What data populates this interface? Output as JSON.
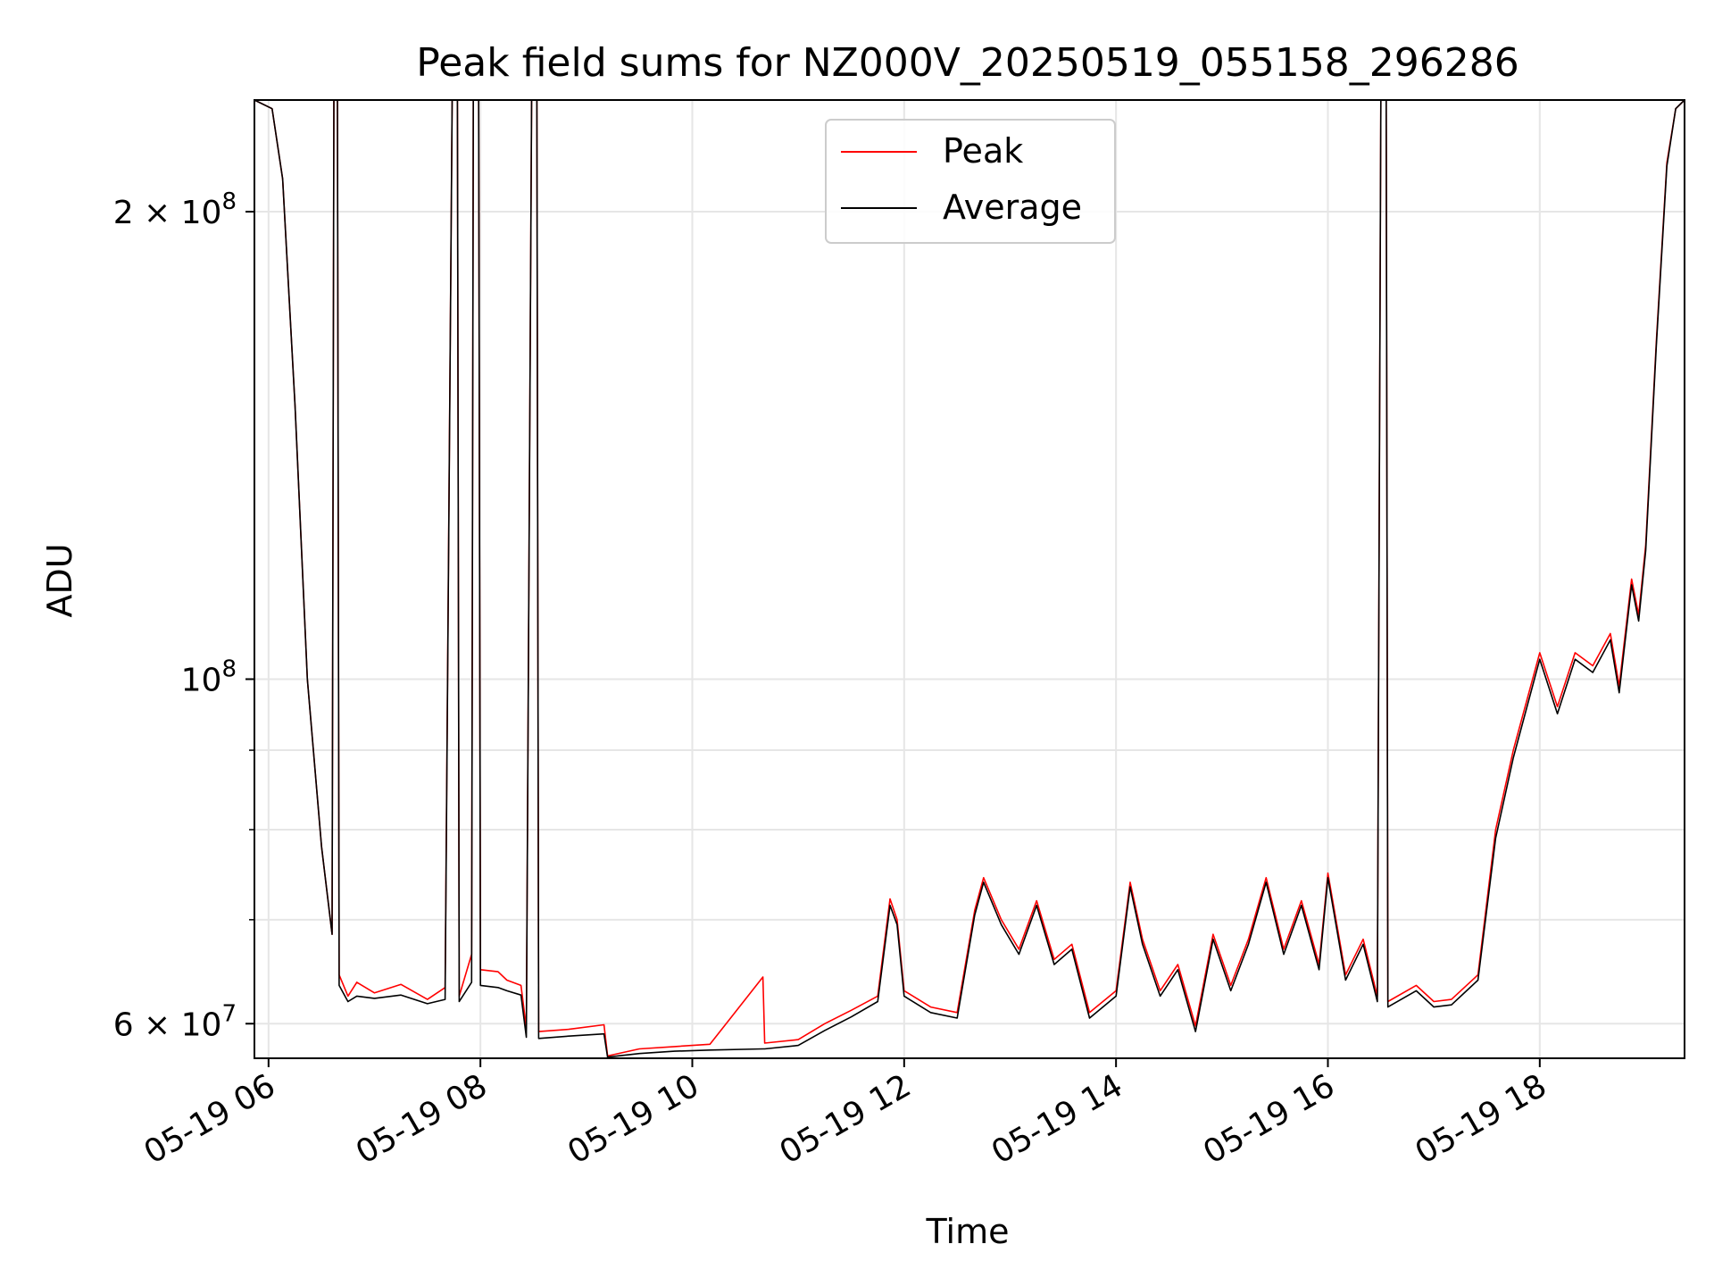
{
  "chart_data": {
    "type": "line",
    "title": "Peak field sums for NZ000V_20250519_055158_296286",
    "xlabel": "Time",
    "ylabel": "ADU",
    "yscale": "log",
    "grid": true,
    "legend_position": "top-center",
    "xlim": [
      "2025-05-19 05:52",
      "2025-05-19 19:22"
    ],
    "ylim": [
      57000000,
      236000000
    ],
    "x_ticks": [
      {
        "value": "2025-05-19 06:00",
        "label": "05-19 06"
      },
      {
        "value": "2025-05-19 08:00",
        "label": "05-19 08"
      },
      {
        "value": "2025-05-19 10:00",
        "label": "05-19 10"
      },
      {
        "value": "2025-05-19 12:00",
        "label": "05-19 12"
      },
      {
        "value": "2025-05-19 14:00",
        "label": "05-19 14"
      },
      {
        "value": "2025-05-19 16:00",
        "label": "05-19 16"
      },
      {
        "value": "2025-05-19 18:00",
        "label": "05-19 18"
      }
    ],
    "y_major_ticks": [
      {
        "value": 60000000,
        "label": "6 × 10",
        "exponent": "7"
      },
      {
        "value": 100000000,
        "label": "10",
        "exponent": "8"
      },
      {
        "value": 200000000,
        "label": "2 × 10",
        "exponent": "8"
      }
    ],
    "y_minor_ticks": [
      70000000,
      80000000,
      90000000
    ],
    "series": [
      {
        "name": "Peak",
        "color": "#ff0000",
        "points": [
          [
            "2025-05-19 05:52",
            236000000
          ],
          [
            "2025-05-19 06:02",
            233000000
          ],
          [
            "2025-05-19 06:08",
            210000000
          ],
          [
            "2025-05-19 06:15",
            150000000
          ],
          [
            "2025-05-19 06:22",
            100000000
          ],
          [
            "2025-05-19 06:30",
            78000000
          ],
          [
            "2025-05-19 06:36",
            68500000
          ],
          [
            "2025-05-19 06:37",
            236000000
          ],
          [
            "2025-05-19 06:39",
            236000000
          ],
          [
            "2025-05-19 06:40",
            64500000
          ],
          [
            "2025-05-19 06:45",
            62500000
          ],
          [
            "2025-05-19 06:50",
            63800000
          ],
          [
            "2025-05-19 07:00",
            62800000
          ],
          [
            "2025-05-19 07:15",
            63600000
          ],
          [
            "2025-05-19 07:30",
            62200000
          ],
          [
            "2025-05-19 07:40",
            63300000
          ],
          [
            "2025-05-19 07:44",
            236000000
          ],
          [
            "2025-05-19 07:47",
            236000000
          ],
          [
            "2025-05-19 07:48",
            62500000
          ],
          [
            "2025-05-19 07:55",
            66500000
          ],
          [
            "2025-05-19 07:56",
            236000000
          ],
          [
            "2025-05-19 07:59",
            236000000
          ],
          [
            "2025-05-19 08:00",
            65000000
          ],
          [
            "2025-05-19 08:10",
            64800000
          ],
          [
            "2025-05-19 08:15",
            64000000
          ],
          [
            "2025-05-19 08:23",
            63500000
          ],
          [
            "2025-05-19 08:26",
            59600000
          ],
          [
            "2025-05-19 08:29",
            236000000
          ],
          [
            "2025-05-19 08:32",
            236000000
          ],
          [
            "2025-05-19 08:33",
            59300000
          ],
          [
            "2025-05-19 08:50",
            59500000
          ],
          [
            "2025-05-19 09:10",
            59900000
          ],
          [
            "2025-05-19 09:12",
            57200000
          ],
          [
            "2025-05-19 09:30",
            57800000
          ],
          [
            "2025-05-19 09:50",
            58000000
          ],
          [
            "2025-05-19 10:10",
            58200000
          ],
          [
            "2025-05-19 10:40",
            64300000
          ],
          [
            "2025-05-19 10:41",
            58300000
          ],
          [
            "2025-05-19 11:00",
            58600000
          ],
          [
            "2025-05-19 11:15",
            60000000
          ],
          [
            "2025-05-19 11:30",
            61200000
          ],
          [
            "2025-05-19 11:45",
            62500000
          ],
          [
            "2025-05-19 11:52",
            72200000
          ],
          [
            "2025-05-19 11:56",
            70000000
          ],
          [
            "2025-05-19 12:00",
            63000000
          ],
          [
            "2025-05-19 12:15",
            61500000
          ],
          [
            "2025-05-19 12:30",
            61000000
          ],
          [
            "2025-05-19 12:40",
            71000000
          ],
          [
            "2025-05-19 12:45",
            74500000
          ],
          [
            "2025-05-19 12:55",
            70000000
          ],
          [
            "2025-05-19 13:05",
            67000000
          ],
          [
            "2025-05-19 13:15",
            72000000
          ],
          [
            "2025-05-19 13:25",
            66000000
          ],
          [
            "2025-05-19 13:35",
            67500000
          ],
          [
            "2025-05-19 13:45",
            61000000
          ],
          [
            "2025-05-19 14:00",
            63000000
          ],
          [
            "2025-05-19 14:08",
            74000000
          ],
          [
            "2025-05-19 14:15",
            68000000
          ],
          [
            "2025-05-19 14:25",
            63000000
          ],
          [
            "2025-05-19 14:35",
            65500000
          ],
          [
            "2025-05-19 14:45",
            59800000
          ],
          [
            "2025-05-19 14:55",
            68500000
          ],
          [
            "2025-05-19 15:05",
            63500000
          ],
          [
            "2025-05-19 15:15",
            68000000
          ],
          [
            "2025-05-19 15:25",
            74500000
          ],
          [
            "2025-05-19 15:35",
            67000000
          ],
          [
            "2025-05-19 15:45",
            72000000
          ],
          [
            "2025-05-19 15:55",
            65500000
          ],
          [
            "2025-05-19 16:00",
            75000000
          ],
          [
            "2025-05-19 16:10",
            64500000
          ],
          [
            "2025-05-19 16:20",
            68000000
          ],
          [
            "2025-05-19 16:28",
            62500000
          ],
          [
            "2025-05-19 16:30",
            236000000
          ],
          [
            "2025-05-19 16:33",
            236000000
          ],
          [
            "2025-05-19 16:34",
            62000000
          ],
          [
            "2025-05-19 16:50",
            63500000
          ],
          [
            "2025-05-19 17:00",
            62000000
          ],
          [
            "2025-05-19 17:10",
            62200000
          ],
          [
            "2025-05-19 17:25",
            64500000
          ],
          [
            "2025-05-19 17:35",
            80000000
          ],
          [
            "2025-05-19 17:45",
            90000000
          ],
          [
            "2025-05-19 18:00",
            104000000
          ],
          [
            "2025-05-19 18:10",
            96000000
          ],
          [
            "2025-05-19 18:20",
            104000000
          ],
          [
            "2025-05-19 18:30",
            102000000
          ],
          [
            "2025-05-19 18:40",
            107000000
          ],
          [
            "2025-05-19 18:45",
            99000000
          ],
          [
            "2025-05-19 18:52",
            116000000
          ],
          [
            "2025-05-19 18:56",
            110000000
          ],
          [
            "2025-05-19 19:00",
            122000000
          ],
          [
            "2025-05-19 19:06",
            165000000
          ],
          [
            "2025-05-19 19:12",
            215000000
          ],
          [
            "2025-05-19 19:17",
            233000000
          ],
          [
            "2025-05-19 19:22",
            236000000
          ]
        ]
      },
      {
        "name": "Average",
        "color": "#000000",
        "points": [
          [
            "2025-05-19 05:52",
            236000000
          ],
          [
            "2025-05-19 06:02",
            233000000
          ],
          [
            "2025-05-19 06:08",
            210000000
          ],
          [
            "2025-05-19 06:15",
            150000000
          ],
          [
            "2025-05-19 06:22",
            100000000
          ],
          [
            "2025-05-19 06:30",
            78000000
          ],
          [
            "2025-05-19 06:36",
            68500000
          ],
          [
            "2025-05-19 06:37",
            236000000
          ],
          [
            "2025-05-19 06:39",
            236000000
          ],
          [
            "2025-05-19 06:40",
            63500000
          ],
          [
            "2025-05-19 06:45",
            62000000
          ],
          [
            "2025-05-19 06:50",
            62500000
          ],
          [
            "2025-05-19 07:00",
            62300000
          ],
          [
            "2025-05-19 07:15",
            62600000
          ],
          [
            "2025-05-19 07:30",
            61800000
          ],
          [
            "2025-05-19 07:40",
            62200000
          ],
          [
            "2025-05-19 07:44",
            236000000
          ],
          [
            "2025-05-19 07:47",
            236000000
          ],
          [
            "2025-05-19 07:48",
            62000000
          ],
          [
            "2025-05-19 07:55",
            63800000
          ],
          [
            "2025-05-19 07:56",
            236000000
          ],
          [
            "2025-05-19 07:59",
            236000000
          ],
          [
            "2025-05-19 08:00",
            63500000
          ],
          [
            "2025-05-19 08:10",
            63300000
          ],
          [
            "2025-05-19 08:15",
            63000000
          ],
          [
            "2025-05-19 08:23",
            62600000
          ],
          [
            "2025-05-19 08:26",
            58800000
          ],
          [
            "2025-05-19 08:29",
            236000000
          ],
          [
            "2025-05-19 08:32",
            236000000
          ],
          [
            "2025-05-19 08:33",
            58700000
          ],
          [
            "2025-05-19 08:50",
            58900000
          ],
          [
            "2025-05-19 09:10",
            59100000
          ],
          [
            "2025-05-19 09:12",
            57100000
          ],
          [
            "2025-05-19 09:30",
            57400000
          ],
          [
            "2025-05-19 09:50",
            57600000
          ],
          [
            "2025-05-19 10:10",
            57700000
          ],
          [
            "2025-05-19 10:40",
            57800000
          ],
          [
            "2025-05-19 10:41",
            57800000
          ],
          [
            "2025-05-19 11:00",
            58100000
          ],
          [
            "2025-05-19 11:15",
            59400000
          ],
          [
            "2025-05-19 11:30",
            60600000
          ],
          [
            "2025-05-19 11:45",
            62000000
          ],
          [
            "2025-05-19 11:52",
            71500000
          ],
          [
            "2025-05-19 11:56",
            69500000
          ],
          [
            "2025-05-19 12:00",
            62500000
          ],
          [
            "2025-05-19 12:15",
            61000000
          ],
          [
            "2025-05-19 12:30",
            60500000
          ],
          [
            "2025-05-19 12:40",
            70500000
          ],
          [
            "2025-05-19 12:45",
            74000000
          ],
          [
            "2025-05-19 12:55",
            69500000
          ],
          [
            "2025-05-19 13:05",
            66500000
          ],
          [
            "2025-05-19 13:15",
            71500000
          ],
          [
            "2025-05-19 13:25",
            65500000
          ],
          [
            "2025-05-19 13:35",
            67000000
          ],
          [
            "2025-05-19 13:45",
            60500000
          ],
          [
            "2025-05-19 14:00",
            62500000
          ],
          [
            "2025-05-19 14:08",
            73500000
          ],
          [
            "2025-05-19 14:15",
            67500000
          ],
          [
            "2025-05-19 14:25",
            62500000
          ],
          [
            "2025-05-19 14:35",
            65000000
          ],
          [
            "2025-05-19 14:45",
            59300000
          ],
          [
            "2025-05-19 14:55",
            68000000
          ],
          [
            "2025-05-19 15:05",
            63000000
          ],
          [
            "2025-05-19 15:15",
            67500000
          ],
          [
            "2025-05-19 15:25",
            74000000
          ],
          [
            "2025-05-19 15:35",
            66500000
          ],
          [
            "2025-05-19 15:45",
            71500000
          ],
          [
            "2025-05-19 15:55",
            65000000
          ],
          [
            "2025-05-19 16:00",
            74500000
          ],
          [
            "2025-05-19 16:10",
            64000000
          ],
          [
            "2025-05-19 16:20",
            67500000
          ],
          [
            "2025-05-19 16:28",
            62000000
          ],
          [
            "2025-05-19 16:30",
            236000000
          ],
          [
            "2025-05-19 16:33",
            236000000
          ],
          [
            "2025-05-19 16:34",
            61500000
          ],
          [
            "2025-05-19 16:50",
            63000000
          ],
          [
            "2025-05-19 17:00",
            61500000
          ],
          [
            "2025-05-19 17:10",
            61700000
          ],
          [
            "2025-05-19 17:25",
            64000000
          ],
          [
            "2025-05-19 17:35",
            79000000
          ],
          [
            "2025-05-19 17:45",
            89000000
          ],
          [
            "2025-05-19 18:00",
            103000000
          ],
          [
            "2025-05-19 18:10",
            95000000
          ],
          [
            "2025-05-19 18:20",
            103000000
          ],
          [
            "2025-05-19 18:30",
            101000000
          ],
          [
            "2025-05-19 18:40",
            106000000
          ],
          [
            "2025-05-19 18:45",
            98000000
          ],
          [
            "2025-05-19 18:52",
            115000000
          ],
          [
            "2025-05-19 18:56",
            109000000
          ],
          [
            "2025-05-19 19:00",
            121000000
          ],
          [
            "2025-05-19 19:06",
            164000000
          ],
          [
            "2025-05-19 19:12",
            214000000
          ],
          [
            "2025-05-19 19:17",
            233000000
          ],
          [
            "2025-05-19 19:22",
            236000000
          ]
        ]
      }
    ]
  }
}
